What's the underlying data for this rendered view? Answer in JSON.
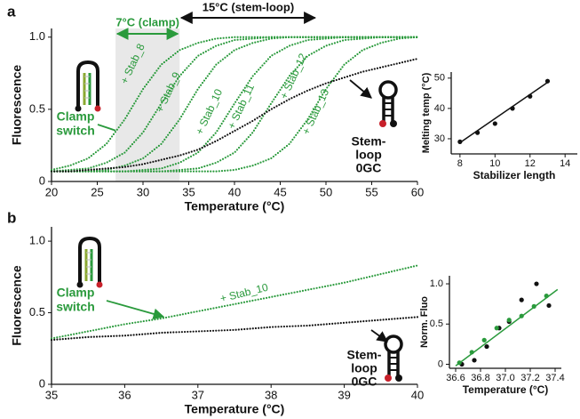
{
  "chart_data": [
    {
      "type": "line",
      "panel": "a",
      "xlabel": "Temperature (°C)",
      "ylabel": "Fluorescence",
      "xlim": [
        20,
        60
      ],
      "ylim": [
        0,
        1.06
      ],
      "xticks": [
        20,
        25,
        30,
        35,
        40,
        45,
        50,
        55,
        60
      ],
      "yticks": [
        0,
        0.5,
        {
          "value": 1,
          "label": "1.0"
        }
      ],
      "x": [
        20,
        22,
        24,
        26,
        28,
        30,
        32,
        34,
        36,
        38,
        40,
        42,
        44,
        46,
        48,
        50,
        52,
        54,
        56,
        58,
        60
      ],
      "series": [
        {
          "name": "+ Stab_8",
          "color": "#2a9a3c",
          "values": [
            0.08,
            0.11,
            0.16,
            0.26,
            0.43,
            0.64,
            0.81,
            0.91,
            0.96,
            0.99,
            1.0,
            1.0,
            1.0,
            1.0,
            1.0,
            1.0,
            1.0,
            1.0,
            1.0,
            1.0,
            1.0
          ]
        },
        {
          "name": "+ Stab_9",
          "color": "#2a9a3c",
          "values": [
            0.07,
            0.08,
            0.09,
            0.13,
            0.2,
            0.34,
            0.54,
            0.73,
            0.87,
            0.94,
            0.98,
            0.99,
            1.0,
            1.0,
            1.0,
            1.0,
            1.0,
            1.0,
            1.0,
            1.0,
            1.0
          ]
        },
        {
          "name": "+ Stab_10",
          "color": "#2a9a3c",
          "values": [
            0.07,
            0.07,
            0.07,
            0.08,
            0.11,
            0.16,
            0.26,
            0.43,
            0.64,
            0.81,
            0.91,
            0.96,
            0.99,
            1.0,
            1.0,
            1.0,
            1.0,
            1.0,
            1.0,
            1.0,
            1.0
          ]
        },
        {
          "name": "+ Stab_11",
          "color": "#2a9a3c",
          "values": [
            0.07,
            0.07,
            0.07,
            0.07,
            0.07,
            0.08,
            0.09,
            0.13,
            0.2,
            0.34,
            0.54,
            0.73,
            0.87,
            0.94,
            0.98,
            0.99,
            1.0,
            1.0,
            1.0,
            1.0,
            1.0
          ]
        },
        {
          "name": "+ Stab_12",
          "color": "#2a9a3c",
          "values": [
            0.07,
            0.07,
            0.07,
            0.07,
            0.07,
            0.07,
            0.07,
            0.08,
            0.09,
            0.13,
            0.2,
            0.34,
            0.54,
            0.73,
            0.87,
            0.94,
            0.98,
            0.99,
            1.0,
            1.0,
            1.0
          ]
        },
        {
          "name": "+ Stab_13",
          "color": "#2a9a3c",
          "values": [
            0.07,
            0.07,
            0.07,
            0.07,
            0.07,
            0.07,
            0.07,
            0.07,
            0.07,
            0.07,
            0.08,
            0.11,
            0.16,
            0.26,
            0.43,
            0.64,
            0.81,
            0.91,
            0.96,
            0.99,
            1.0
          ]
        },
        {
          "color": "#111111",
          "values": [
            0.07,
            0.07,
            0.08,
            0.09,
            0.1,
            0.12,
            0.15,
            0.18,
            0.22,
            0.28,
            0.35,
            0.42,
            0.5,
            0.57,
            0.63,
            0.68,
            0.72,
            0.76,
            0.79,
            0.82,
            0.85
          ]
        }
      ],
      "highlight": {
        "x": [
          27,
          34
        ],
        "label": "7°C (clamp)"
      },
      "span": {
        "x": [
          34,
          49
        ],
        "label": "15°C (stem-loop)"
      },
      "clamp_label": [
        "Clamp",
        "switch"
      ],
      "stem_label": [
        "Stem-",
        "loop",
        "0GC"
      ]
    },
    {
      "type": "scatter",
      "xlabel": "Stabilizer length",
      "ylabel": "Melting temp (°C)",
      "xlim": [
        7.5,
        14.7
      ],
      "ylim": [
        25,
        52
      ],
      "xticks": [
        8,
        10,
        12,
        14
      ],
      "yticks": [
        30,
        40,
        50
      ],
      "series": [
        {
          "color": "#111111",
          "x": [
            8,
            9,
            10,
            11,
            12,
            13
          ],
          "values": [
            29,
            32,
            35,
            40,
            44,
            49
          ]
        },
        {
          "color": "#111111",
          "style": "line",
          "x": [
            8,
            13
          ],
          "values": [
            28.7,
            48.6
          ]
        }
      ]
    },
    {
      "type": "line",
      "panel": "b",
      "xlabel": "Temperature (°C)",
      "ylabel": "Fluorescence",
      "xlim": [
        35,
        40
      ],
      "ylim": [
        0,
        1.1
      ],
      "xticks": [
        35,
        36,
        37,
        38,
        39,
        40
      ],
      "yticks": [
        0,
        0.5,
        {
          "value": 1,
          "label": "1.0"
        }
      ],
      "x": [
        35,
        35.5,
        36,
        36.5,
        37,
        37.5,
        38,
        38.5,
        39,
        39.5,
        40
      ],
      "series": [
        {
          "name": "+ Stab_10",
          "color": "#2a9a3c",
          "values": [
            0.32,
            0.37,
            0.42,
            0.46,
            0.51,
            0.56,
            0.61,
            0.66,
            0.71,
            0.77,
            0.83
          ]
        },
        {
          "color": "#111111",
          "values": [
            0.31,
            0.33,
            0.34,
            0.36,
            0.37,
            0.38,
            0.4,
            0.41,
            0.43,
            0.45,
            0.47
          ]
        }
      ],
      "clamp_label": [
        "Clamp",
        "switch"
      ],
      "stem_label": [
        "Stem-",
        "loop",
        "0GC"
      ]
    },
    {
      "type": "scatter",
      "xlabel": "Temperature (°C)",
      "ylabel": "Norm. Fluo",
      "xlim": [
        36.55,
        37.45
      ],
      "ylim": [
        -0.05,
        1.1
      ],
      "xticks": [
        36.6,
        36.8,
        {
          "value": 37,
          "label": "37.0"
        },
        37.2,
        37.4
      ],
      "yticks": [
        0,
        0.5,
        {
          "value": 1,
          "label": "1.0"
        }
      ],
      "series": [
        {
          "color": "#111111",
          "x": [
            36.65,
            36.75,
            36.85,
            36.95,
            37.03,
            37.13,
            37.25,
            37.35
          ],
          "values": [
            0,
            0.05,
            0.22,
            0.45,
            0.53,
            0.8,
            1.0,
            0.73
          ]
        },
        {
          "color": "#2a9a3c",
          "x": [
            36.63,
            36.73,
            36.83,
            36.93,
            37.03,
            37.13,
            37.23,
            37.33
          ],
          "values": [
            0.02,
            0.15,
            0.3,
            0.45,
            0.55,
            0.6,
            0.72,
            0.85
          ]
        },
        {
          "color": "#2a9a3c",
          "style": "line",
          "x": [
            36.6,
            37.42
          ],
          "values": [
            -0.02,
            0.93
          ]
        }
      ]
    }
  ]
}
